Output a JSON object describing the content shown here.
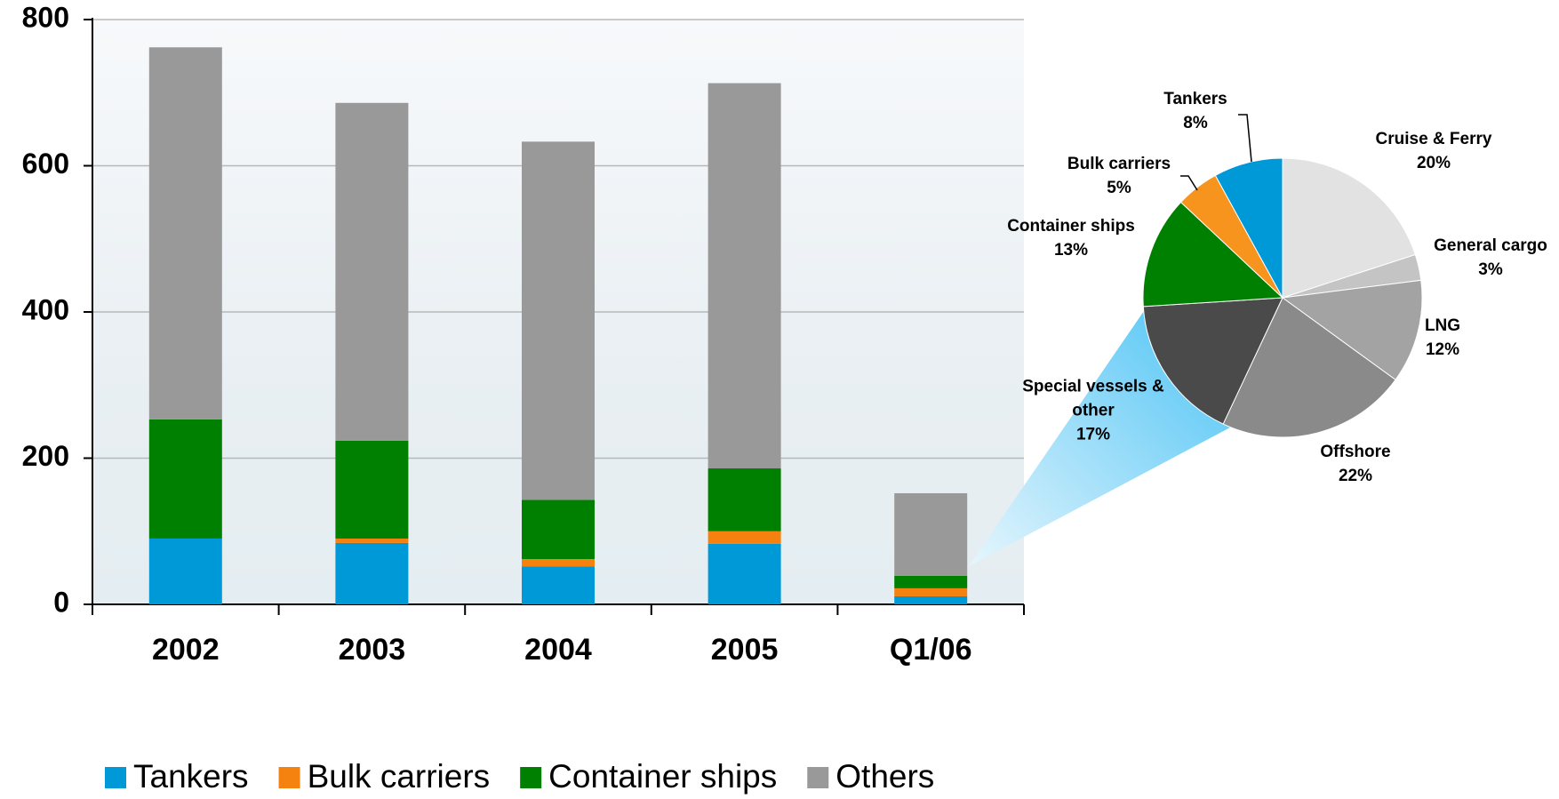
{
  "chart_data": [
    {
      "type": "bar",
      "stacked": true,
      "categories": [
        "2002",
        "2003",
        "2004",
        "2005",
        "Q1/06"
      ],
      "series": [
        {
          "name": "Tankers",
          "color": "#0099d8",
          "values": [
            90,
            84,
            52,
            83,
            11
          ]
        },
        {
          "name": "Bulk carriers",
          "color": "#f5820f",
          "values": [
            0,
            6,
            10,
            17,
            11
          ]
        },
        {
          "name": "Container ships",
          "color": "#008000",
          "values": [
            163,
            134,
            81,
            86,
            17
          ]
        },
        {
          "name": "Others",
          "color": "#999999",
          "values": [
            509,
            462,
            490,
            527,
            113
          ]
        }
      ],
      "ylim": [
        0,
        800
      ],
      "yticks": [
        0,
        200,
        400,
        600,
        800
      ],
      "grid": true,
      "legend": "bottom"
    },
    {
      "type": "pie",
      "categories": [
        "Cruise & Ferry",
        "General cargo",
        "LNG",
        "Offshore",
        "Special vessels & other",
        "Container ships",
        "Bulk carriers",
        "Tankers"
      ],
      "values": [
        20,
        3,
        12,
        22,
        17,
        13,
        5,
        8
      ],
      "value_labels": [
        "20%",
        "3%",
        "12%",
        "22%",
        "17%",
        "13%",
        "5%",
        "8%"
      ],
      "colors": [
        "#e2e2e2",
        "#c4c4c4",
        "#a3a3a3",
        "#8a8a8a",
        "#4a4a4a",
        "#008000",
        "#f7941d",
        "#0099d8"
      ]
    }
  ]
}
